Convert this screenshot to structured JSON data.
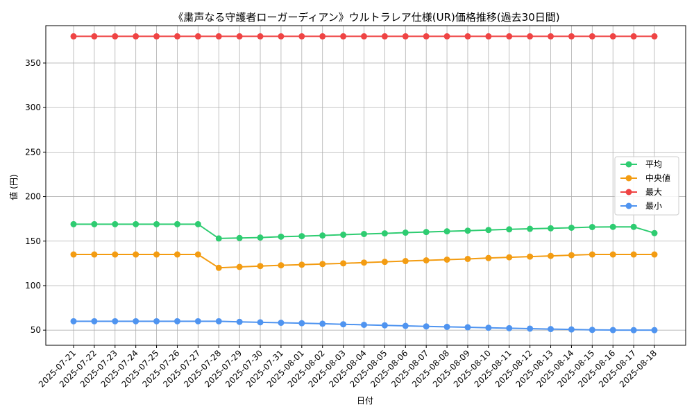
{
  "chart_data": {
    "type": "line",
    "title": "《粛声なる守護者ローガーディアン》ウルトラレア仕様(UR)価格推移(過去30日間)",
    "xlabel": "日付",
    "ylabel": "値 (円)",
    "ylim": [
      33,
      392
    ],
    "yticks": [
      50,
      100,
      150,
      200,
      250,
      300,
      350
    ],
    "grid": true,
    "legend_position": "right",
    "categories": [
      "2025-07-21",
      "2025-07-22",
      "2025-07-23",
      "2025-07-24",
      "2025-07-25",
      "2025-07-26",
      "2025-07-27",
      "2025-07-28",
      "2025-07-29",
      "2025-07-30",
      "2025-07-31",
      "2025-08-01",
      "2025-08-02",
      "2025-08-03",
      "2025-08-04",
      "2025-08-05",
      "2025-08-06",
      "2025-08-07",
      "2025-08-08",
      "2025-08-09",
      "2025-08-10",
      "2025-08-11",
      "2025-08-12",
      "2025-08-13",
      "2025-08-14",
      "2025-08-15",
      "2025-08-16",
      "2025-08-17",
      "2025-08-18"
    ],
    "series": [
      {
        "name": "平均",
        "color": "#2ecc71",
        "values": [
          169,
          169,
          169,
          169,
          169,
          169,
          169,
          153,
          153.5,
          154,
          155,
          155.6,
          156.3,
          157.2,
          158,
          158.7,
          159.5,
          160.2,
          161,
          161.7,
          162.5,
          163.2,
          163.8,
          164.4,
          165,
          165.8,
          166,
          166,
          159
        ]
      },
      {
        "name": "中央値",
        "color": "#f39c12",
        "values": [
          135,
          135,
          135,
          135,
          135,
          135,
          135,
          120,
          121,
          122,
          122.8,
          123.5,
          124.3,
          125,
          125.9,
          126.7,
          127.6,
          128.4,
          129.2,
          130,
          131,
          131.8,
          132.6,
          133.4,
          134.2,
          135,
          135,
          135,
          135
        ]
      },
      {
        "name": "最大",
        "color": "#ef4444",
        "values": [
          380,
          380,
          380,
          380,
          380,
          380,
          380,
          380,
          380,
          380,
          380,
          380,
          380,
          380,
          380,
          380,
          380,
          380,
          380,
          380,
          380,
          380,
          380,
          380,
          380,
          380,
          380,
          380,
          380
        ]
      },
      {
        "name": "最小",
        "color": "#4f94f0",
        "values": [
          60,
          60,
          60,
          60,
          60,
          60,
          60,
          60,
          59.3,
          58.8,
          58.3,
          57.8,
          57.2,
          56.6,
          56,
          55.4,
          54.8,
          54.2,
          53.7,
          53.2,
          52.7,
          52.2,
          51.7,
          51.2,
          50.8,
          50.3,
          50.1,
          50,
          50
        ]
      }
    ]
  }
}
